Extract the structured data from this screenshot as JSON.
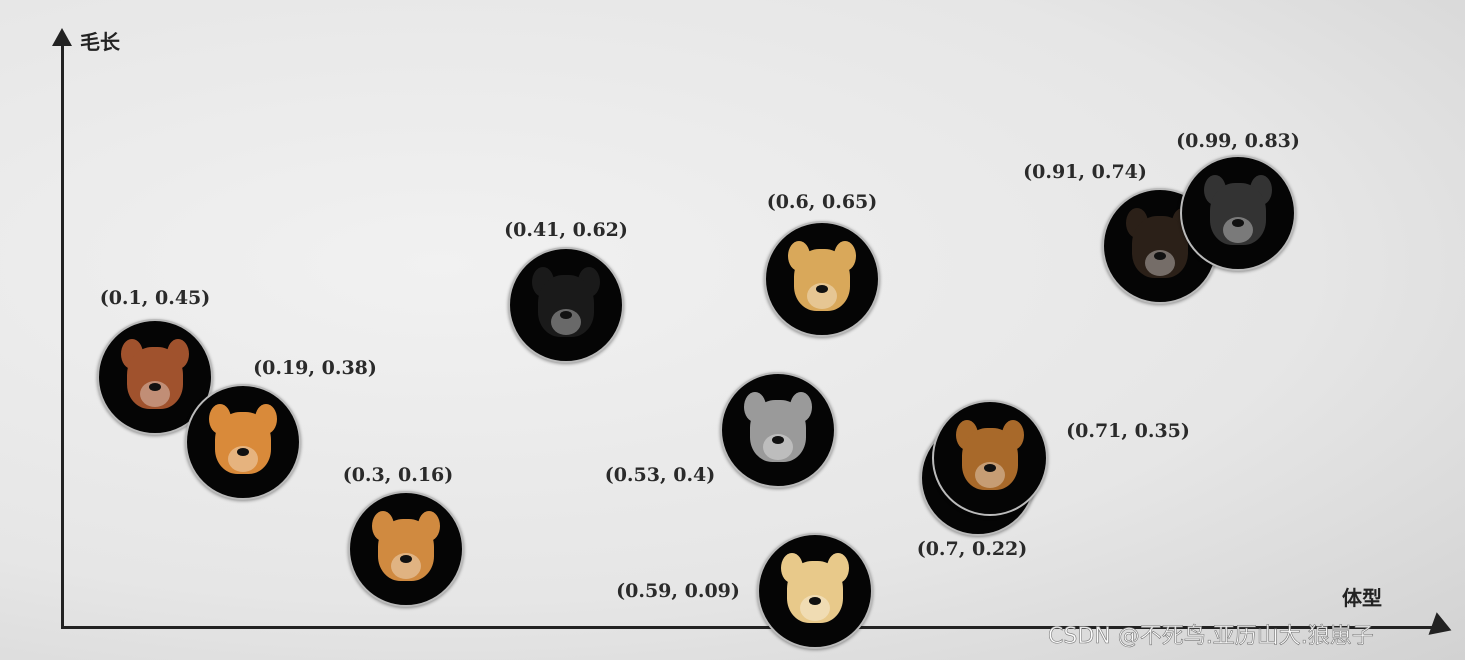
{
  "axes": {
    "y_label": "毛长",
    "x_label": "体型"
  },
  "points": [
    {
      "label": "(0.1, 0.45)",
      "x": 0.1,
      "y": 0.45,
      "color": "#a0522d"
    },
    {
      "label": "(0.19, 0.38)",
      "x": 0.19,
      "y": 0.38,
      "color": "#d98a3a"
    },
    {
      "label": "(0.3, 0.16)",
      "x": 0.3,
      "y": 0.16,
      "color": "#d08a40"
    },
    {
      "label": "(0.41, 0.62)",
      "x": 0.41,
      "y": 0.62,
      "color": "#1a1a1a"
    },
    {
      "label": "(0.6, 0.65)",
      "x": 0.6,
      "y": 0.65,
      "color": "#d9a85a"
    },
    {
      "label": "(0.53, 0.4)",
      "x": 0.53,
      "y": 0.4,
      "color": "#9a9a9a"
    },
    {
      "label": "(0.59, 0.09)",
      "x": 0.59,
      "y": 0.09,
      "color": "#e8c98a"
    },
    {
      "label": "(0.7, 0.22)",
      "x": 0.7,
      "y": 0.22,
      "color": "#2a2a2a"
    },
    {
      "label": "(0.71, 0.35)",
      "x": 0.71,
      "y": 0.35,
      "color": "#a8692a"
    },
    {
      "label": "(0.91, 0.74)",
      "x": 0.91,
      "y": 0.74,
      "color": "#2b2018"
    },
    {
      "label": "(0.99, 0.83)",
      "x": 0.99,
      "y": 0.83,
      "color": "#333"
    }
  ],
  "watermark": "CSDN @不死鸟.亚历山大.狼崽子"
}
